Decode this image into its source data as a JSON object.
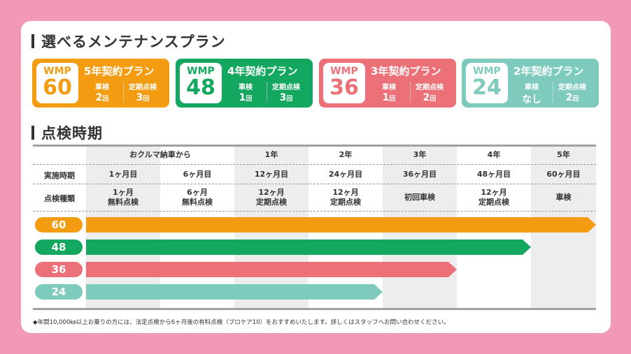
{
  "sections": {
    "plans_title": "選べるメンテナンスプラン",
    "schedule_title": "点検時期"
  },
  "plans": [
    {
      "wmp": "WMP",
      "num": "60",
      "title": "5年契約プラン",
      "col1_label": "車検",
      "col1_value": "2",
      "col1_unit": "回",
      "col2_label": "定期点検",
      "col2_value": "3",
      "col2_unit": "回",
      "color": "#f39c12"
    },
    {
      "wmp": "WMP",
      "num": "48",
      "title": "4年契約プラン",
      "col1_label": "車検",
      "col1_value": "1",
      "col1_unit": "回",
      "col2_label": "定期点検",
      "col2_value": "3",
      "col2_unit": "回",
      "color": "#14a760"
    },
    {
      "wmp": "WMP",
      "num": "36",
      "title": "3年契約プラン",
      "col1_label": "車検",
      "col1_value": "1",
      "col1_unit": "回",
      "col2_label": "定期点検",
      "col2_value": "2",
      "col2_unit": "回",
      "color": "#ec7077"
    },
    {
      "wmp": "WMP",
      "num": "24",
      "title": "2年契約プラン",
      "col1_label": "車検",
      "col1_value": "なし",
      "col1_unit": "",
      "col2_label": "定期点検",
      "col2_value": "2",
      "col2_unit": "回",
      "color": "#7ecbbd"
    }
  ],
  "table": {
    "header_left": "おクルマ納車から",
    "years": [
      "1年",
      "2年",
      "3年",
      "4年",
      "5年"
    ],
    "row1_label": "実施時期",
    "row1": [
      "1ヶ月目",
      "6ヶ月目",
      "12ヶ月目",
      "24ヶ月目",
      "36ヶ月目",
      "48ヶ月目",
      "60ヶ月目"
    ],
    "row2_label": "点検種類",
    "row2": [
      [
        "1ヶ月",
        "無料点検"
      ],
      [
        "6ヶ月",
        "無料点検"
      ],
      [
        "12ヶ月",
        "定期点検"
      ],
      [
        "12ヶ月",
        "定期点検"
      ],
      [
        "初回車検",
        ""
      ],
      [
        "12ヶ月",
        "定期点検"
      ],
      [
        "車検",
        ""
      ]
    ]
  },
  "bars": [
    {
      "label": "60",
      "color": "#f39c12",
      "end_col": 7
    },
    {
      "label": "48",
      "color": "#14a760",
      "end_col": 6
    },
    {
      "label": "36",
      "color": "#ec7077",
      "end_col": 5
    },
    {
      "label": "24",
      "color": "#7ecbbd",
      "end_col": 4
    }
  ],
  "footnote": "◆年間10,000㎞以上お乗りの方には、法定点検から6ヶ月後の有料点検（プロケア10）をおすすめいたします。詳しくはスタッフへお問い合わせください。"
}
